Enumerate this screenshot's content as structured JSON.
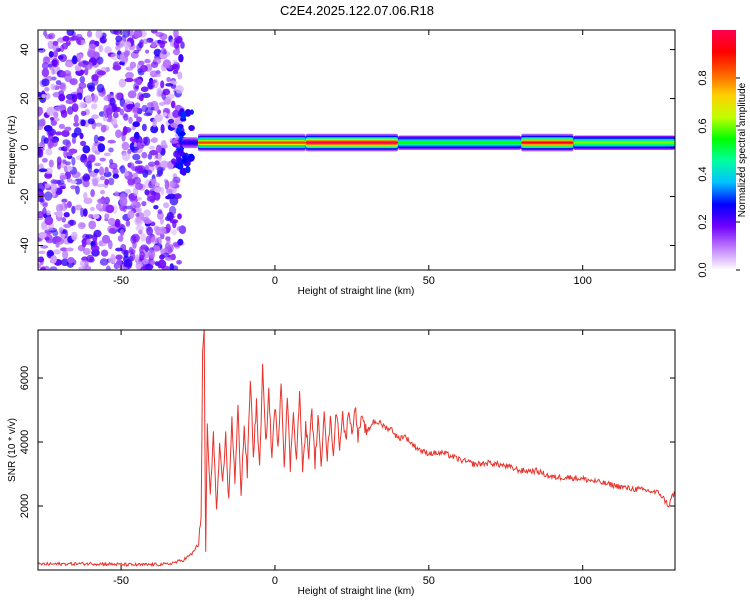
{
  "title": "C2E4.2025.122.07.06.R18",
  "chart_data": [
    {
      "type": "heatmap",
      "xlabel": "Height of straight line (km)",
      "ylabel": "Frequency (Hz)",
      "xlim": [
        -77,
        130
      ],
      "ylim": [
        -50,
        48
      ],
      "xticks": [
        -50,
        0,
        50,
        100
      ],
      "yticks": [
        -40,
        -20,
        0,
        20,
        40
      ],
      "colorbar": {
        "label": "Normalized spectral amplitude",
        "range": [
          0,
          1
        ],
        "ticks": [
          "0.0",
          "0.2",
          "0.4",
          "0.6",
          "0.8"
        ],
        "colormap": [
          "#ffffff",
          "#c080ff",
          "#7000ff",
          "#0000ff",
          "#00c0ff",
          "#00ffa0",
          "#00ff00",
          "#c0ff00",
          "#ffd000",
          "#ff6000",
          "#ff0000",
          "#ff0050"
        ]
      },
      "regions": [
        {
          "name": "noise",
          "x": [
            -77,
            -30
          ],
          "freq": [
            -50,
            48
          ],
          "amplitude": [
            0.05,
            0.25
          ]
        },
        {
          "name": "signal band",
          "x": [
            -30,
            130
          ],
          "center_freq_hz": 2,
          "peak_amplitude": 1.0
        }
      ],
      "band_segments": [
        {
          "x": [
            -30,
            -25
          ],
          "amp": 0.25
        },
        {
          "x": [
            -25,
            10
          ],
          "amp": 0.85
        },
        {
          "x": [
            10,
            40
          ],
          "amp": 1.0
        },
        {
          "x": [
            40,
            80
          ],
          "amp": 0.55
        },
        {
          "x": [
            80,
            97
          ],
          "amp": 0.95
        },
        {
          "x": [
            97,
            130
          ],
          "amp": 0.6
        }
      ]
    },
    {
      "type": "line",
      "xlabel": "Height of straight line (km)",
      "ylabel": "SNR (10 * v/v)",
      "xlim": [
        -77,
        130
      ],
      "ylim": [
        0,
        7500
      ],
      "xticks": [
        -50,
        0,
        50,
        100
      ],
      "yticks": [
        2000,
        4000,
        6000
      ],
      "color": "#e8352e",
      "series": [
        {
          "x": [
            -77,
            -60,
            -45,
            -35,
            -30,
            -27,
            -25,
            -24,
            -23.5,
            -23,
            -22.5,
            -22,
            -21,
            -20,
            -19,
            -18,
            -17,
            -16,
            -15,
            -14,
            -13,
            -12,
            -11,
            -10,
            -9,
            -8,
            -7,
            -6,
            -5,
            -4,
            -3,
            -2,
            -1,
            0,
            1,
            2,
            3,
            4,
            5,
            6,
            7,
            8,
            9,
            10,
            11,
            12,
            13,
            14,
            15,
            16,
            17,
            18,
            19,
            20,
            21,
            22,
            23,
            24,
            25,
            26,
            27,
            28,
            30,
            32,
            34,
            36,
            38,
            40,
            42,
            45,
            48,
            50,
            55,
            60,
            65,
            70,
            75,
            80,
            85,
            90,
            95,
            100,
            105,
            110,
            115,
            120,
            125,
            128,
            129,
            130
          ],
          "y": [
            180,
            200,
            160,
            180,
            300,
            500,
            800,
            1500,
            6800,
            7500,
            600,
            4500,
            2200,
            4400,
            1800,
            3800,
            2600,
            4200,
            2100,
            4800,
            2700,
            5100,
            2400,
            4500,
            3000,
            6000,
            3600,
            5200,
            3100,
            6300,
            3900,
            5600,
            3500,
            5200,
            3700,
            6000,
            3300,
            5400,
            3200,
            5000,
            3400,
            5600,
            3100,
            4500,
            3600,
            5000,
            3300,
            4800,
            3200,
            5100,
            3500,
            4700,
            3700,
            5000,
            3900,
            4900,
            4000,
            5100,
            4200,
            5200,
            4100,
            4700,
            4300,
            4650,
            4600,
            4450,
            4400,
            4100,
            4200,
            3900,
            3700,
            3650,
            3650,
            3450,
            3300,
            3350,
            3250,
            3100,
            3100,
            2900,
            2900,
            2850,
            2750,
            2650,
            2550,
            2500,
            2400,
            2000,
            2300,
            2400
          ]
        }
      ]
    }
  ]
}
